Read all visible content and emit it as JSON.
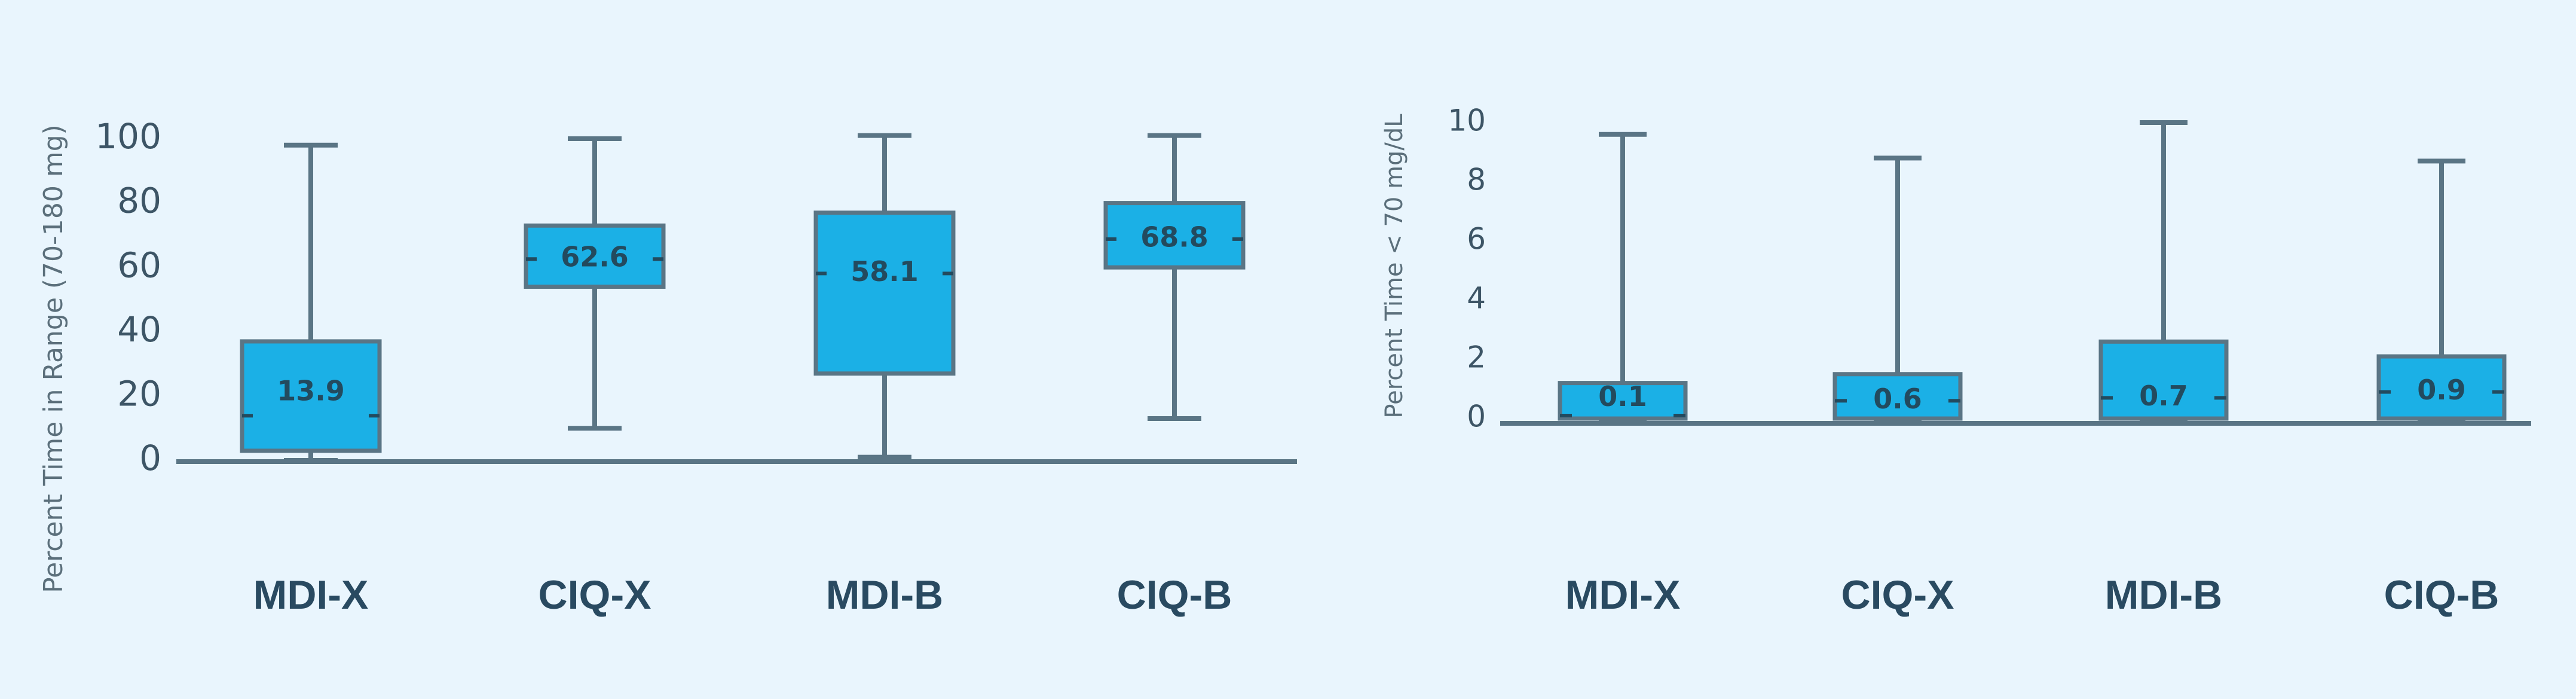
{
  "chart_data": [
    {
      "type": "boxplot",
      "ylabel": "Percent Time in Range (70-180 mg)",
      "ylim": [
        0,
        100
      ],
      "yticks": [
        0,
        20,
        40,
        60,
        80,
        100
      ],
      "categories": [
        "MDI-X",
        "CIQ-X",
        "MDI-B",
        "CIQ-B"
      ],
      "boxes": [
        {
          "min": 0,
          "q1": 3,
          "median": 13.9,
          "q3": 37,
          "max": 98,
          "label": "13.9"
        },
        {
          "min": 10,
          "q1": 54,
          "median": 62.6,
          "q3": 73,
          "max": 100,
          "label": "62.6"
        },
        {
          "min": 1,
          "q1": 27,
          "median": 58.1,
          "q3": 77,
          "max": 101,
          "label": "58.1"
        },
        {
          "min": 13,
          "q1": 60,
          "median": 68.8,
          "q3": 80,
          "max": 101,
          "label": "68.8"
        }
      ],
      "box_color": "#1bb0e6",
      "grid": false
    },
    {
      "type": "boxplot",
      "ylabel": "Percent Time < 70 mg/dL",
      "ylim": [
        0,
        10
      ],
      "yticks": [
        0,
        2,
        4,
        6,
        8,
        10
      ],
      "categories": [
        "MDI-X",
        "CIQ-X",
        "MDI-B",
        "CIQ-B"
      ],
      "boxes": [
        {
          "min": 0,
          "q1": 0,
          "median": 0.1,
          "q3": 1.2,
          "max": 9.6,
          "label": "0.1"
        },
        {
          "min": 0,
          "q1": 0,
          "median": 0.6,
          "q3": 1.5,
          "max": 8.8,
          "label": "0.6"
        },
        {
          "min": 0,
          "q1": 0,
          "median": 0.7,
          "q3": 2.6,
          "max": 10,
          "label": "0.7"
        },
        {
          "min": 0,
          "q1": 0,
          "median": 0.9,
          "q3": 2.1,
          "max": 8.7,
          "label": "0.9"
        }
      ],
      "box_color": "#1bb0e6",
      "grid": false
    }
  ],
  "colors": {
    "background": "#e9f5fd",
    "box_fill": "#1bb0e6",
    "line": "#5a7585",
    "text": "#294a61"
  }
}
